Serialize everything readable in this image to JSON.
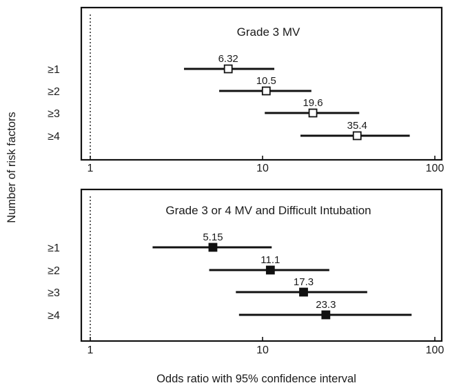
{
  "chart_data": [
    {
      "type": "forest",
      "title": "Grade 3 MV",
      "marker": "open-square",
      "x_scale": "log",
      "xlim": [
        1,
        100
      ],
      "x_ticks": [
        1,
        10,
        100
      ],
      "x_tick_labels": [
        "1",
        "10",
        "100"
      ],
      "reference_line": 1,
      "categories": [
        "≥1",
        "≥2",
        "≥3",
        "≥4"
      ],
      "values": [
        6.32,
        10.5,
        19.6,
        35.4
      ],
      "value_labels": [
        "6.32",
        "10.5",
        "19.6",
        "35.4"
      ],
      "ci_lower": [
        3.5,
        5.6,
        10.3,
        16.6
      ],
      "ci_upper": [
        11.7,
        19.2,
        36.4,
        71.5
      ]
    },
    {
      "type": "forest",
      "title": "Grade 3 or 4 MV and Difficult Intubation",
      "marker": "filled-square",
      "x_scale": "log",
      "xlim": [
        1,
        100
      ],
      "x_ticks": [
        1,
        10,
        100
      ],
      "x_tick_labels": [
        "1",
        "10",
        "100"
      ],
      "reference_line": 1,
      "categories": [
        "≥1",
        "≥2",
        "≥3",
        "≥4"
      ],
      "values": [
        5.15,
        11.1,
        17.3,
        23.3
      ],
      "value_labels": [
        "5.15",
        "11.1",
        "17.3",
        "23.3"
      ],
      "ci_lower": [
        2.3,
        4.9,
        7.0,
        7.3
      ],
      "ci_upper": [
        11.3,
        24.4,
        40.5,
        73.3
      ]
    }
  ],
  "ylabel": "Number of risk factors",
  "xlabel": "Odds ratio with 95% confidence interval",
  "colors": {
    "line": "#111111",
    "open_marker_fill": "#ffffff",
    "filled_marker_fill": "#111111"
  }
}
